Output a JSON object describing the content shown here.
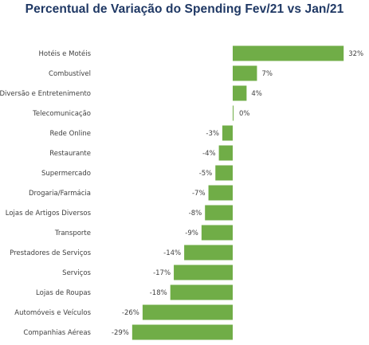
{
  "chart_data": {
    "type": "bar",
    "orientation": "horizontal",
    "title": "Percentual de Variação do Spending  Fev/21 vs Jan/21",
    "categories": [
      "Hotéis e Motéis",
      "Combustível",
      "Diversão e Entretenimento",
      "Telecomunicação",
      "Rede Online",
      "Restaurante",
      "Supermercado",
      "Drogaria/Farmácia",
      "Lojas de Artigos Diversos",
      "Transporte",
      "Prestadores de Serviços",
      "Serviços",
      "Lojas de Roupas",
      "Automóveis e Veículos",
      "Companhias Aéreas"
    ],
    "values": [
      32,
      7,
      4,
      0,
      -3,
      -4,
      -5,
      -7,
      -8,
      -9,
      -14,
      -17,
      -18,
      -26,
      -29
    ],
    "value_labels": [
      "32%",
      "7%",
      "4%",
      "0%",
      "-3%",
      "-4%",
      "-5%",
      "-7%",
      "-8%",
      "-9%",
      "-14%",
      "-17%",
      "-18%",
      "-26%",
      "-29%"
    ],
    "xlim": [
      -29,
      32
    ],
    "grid": false,
    "legend": "none",
    "bar_color": "#70ad47",
    "title_color": "#1f3864"
  }
}
